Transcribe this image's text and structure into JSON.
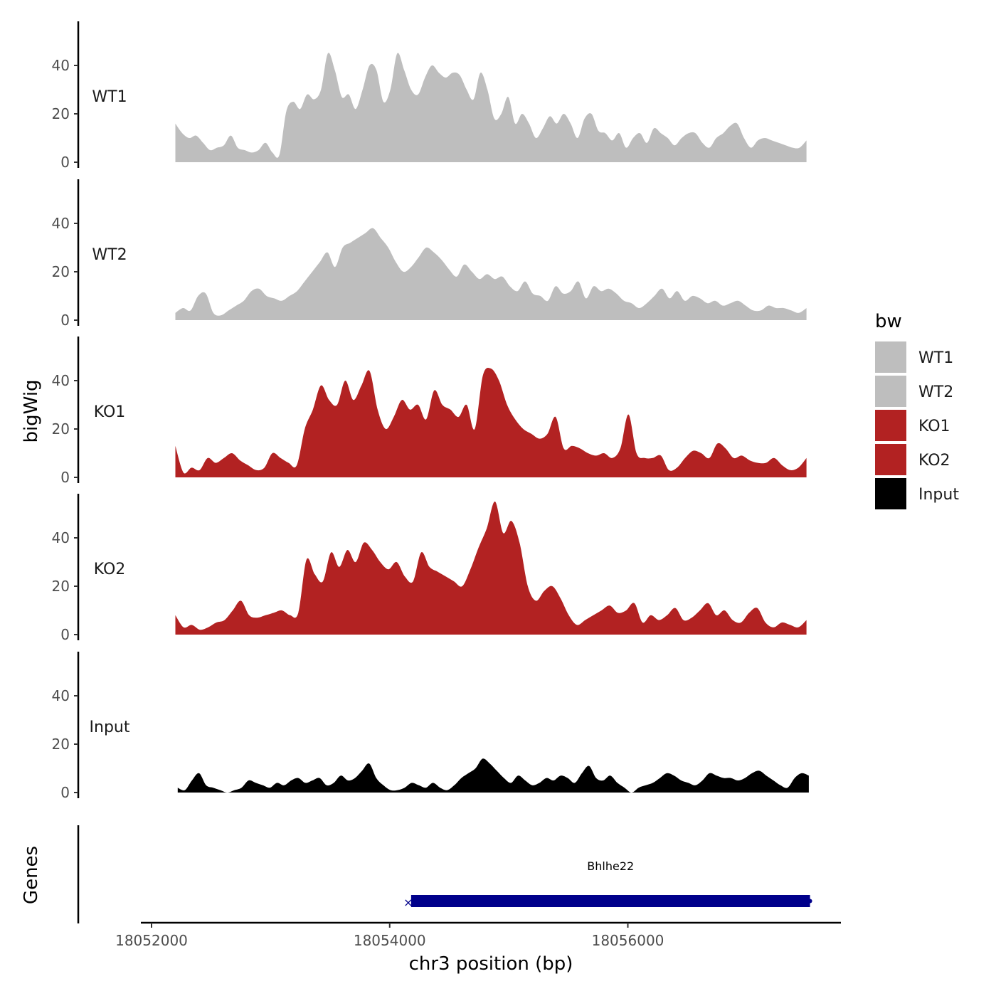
{
  "chart_data": {
    "type": "area",
    "y_title": "bigWig",
    "x_title": "chr3 position (bp)",
    "genes_title": "Genes",
    "chromosome": "chr3",
    "xlim": [
      18051900,
      18057800
    ],
    "ylim": [
      0,
      56
    ],
    "y_ticks": [
      0,
      20,
      40
    ],
    "y_tick_labels": [
      "0",
      "20",
      "40"
    ],
    "x_ticks": [
      18052000,
      18054000,
      18056000
    ],
    "x_tick_labels": [
      "18052000",
      "18054000",
      "18056000"
    ],
    "legend": {
      "title": "bw",
      "position": "right",
      "entries": [
        {
          "label": "WT1",
          "color": "#bebebe"
        },
        {
          "label": "WT2",
          "color": "#bebebe"
        },
        {
          "label": "KO1",
          "color": "#b22222"
        },
        {
          "label": "KO2",
          "color": "#b22222"
        },
        {
          "label": "Input",
          "color": "#000000"
        }
      ]
    },
    "series": [
      {
        "name": "WT1",
        "color": "#bebebe",
        "x_start": 18052200,
        "x_end": 18057500,
        "values": [
          16,
          12,
          10,
          11,
          8,
          5,
          6,
          7,
          11,
          6,
          5,
          4,
          5,
          8,
          4,
          3,
          21,
          25,
          22,
          28,
          26,
          30,
          45,
          38,
          27,
          28,
          22,
          30,
          40,
          38,
          25,
          30,
          45,
          38,
          30,
          28,
          35,
          40,
          37,
          35,
          37,
          36,
          30,
          26,
          37,
          30,
          18,
          20,
          27,
          16,
          20,
          16,
          10,
          14,
          19,
          16,
          20,
          16,
          10,
          18,
          20,
          13,
          12,
          9,
          12,
          6,
          10,
          12,
          8,
          14,
          12,
          10,
          7,
          10,
          12,
          12,
          8,
          6,
          10,
          12,
          15,
          16,
          10,
          6,
          9,
          10,
          9,
          8,
          7,
          6,
          6,
          9
        ]
      },
      {
        "name": "WT2",
        "color": "#bebebe",
        "x_start": 18052200,
        "x_end": 18057500,
        "values": [
          3,
          5,
          4,
          10,
          11,
          3,
          2,
          4,
          6,
          8,
          12,
          13,
          10,
          9,
          8,
          10,
          12,
          16,
          20,
          24,
          28,
          22,
          30,
          32,
          34,
          36,
          38,
          34,
          30,
          24,
          20,
          22,
          26,
          30,
          28,
          25,
          21,
          18,
          23,
          20,
          17,
          19,
          17,
          18,
          14,
          12,
          16,
          11,
          10,
          8,
          14,
          11,
          12,
          16,
          9,
          14,
          12,
          13,
          11,
          8,
          7,
          5,
          7,
          10,
          13,
          9,
          12,
          8,
          10,
          9,
          7,
          8,
          6,
          7,
          8,
          6,
          4,
          4,
          6,
          5,
          5,
          4,
          3,
          5
        ]
      },
      {
        "name": "KO1",
        "color": "#b22222",
        "x_start": 18052200,
        "x_end": 18057500,
        "values": [
          13,
          2,
          4,
          3,
          8,
          6,
          8,
          10,
          7,
          5,
          3,
          4,
          10,
          8,
          6,
          5,
          20,
          28,
          38,
          32,
          30,
          40,
          32,
          38,
          44,
          28,
          20,
          25,
          32,
          28,
          30,
          24,
          36,
          30,
          28,
          25,
          30,
          20,
          42,
          45,
          40,
          30,
          24,
          20,
          18,
          16,
          18,
          25,
          12,
          13,
          12,
          10,
          9,
          10,
          8,
          12,
          26,
          10,
          8,
          8,
          9,
          3,
          4,
          8,
          11,
          10,
          8,
          14,
          12,
          8,
          9,
          7,
          6,
          6,
          8,
          5,
          3,
          4,
          8
        ]
      },
      {
        "name": "KO2",
        "color": "#b22222",
        "x_start": 18052200,
        "x_end": 18057500,
        "values": [
          8,
          3,
          4,
          2,
          3,
          5,
          6,
          10,
          14,
          8,
          7,
          8,
          9,
          10,
          8,
          9,
          31,
          25,
          22,
          34,
          28,
          35,
          30,
          38,
          35,
          30,
          27,
          30,
          24,
          22,
          34,
          28,
          26,
          24,
          22,
          20,
          27,
          36,
          44,
          55,
          42,
          47,
          38,
          20,
          14,
          18,
          20,
          15,
          8,
          4,
          6,
          8,
          10,
          12,
          9,
          10,
          13,
          5,
          8,
          6,
          8,
          11,
          6,
          7,
          10,
          13,
          8,
          10,
          6,
          5,
          9,
          11,
          5,
          3,
          5,
          4,
          3,
          6
        ]
      },
      {
        "name": "Input",
        "color": "#000000",
        "x_start": 18052220,
        "x_end": 18057520,
        "values": [
          2,
          1,
          5,
          8,
          3,
          2,
          1,
          0,
          1,
          2,
          5,
          4,
          3,
          2,
          4,
          3,
          5,
          6,
          4,
          5,
          6,
          3,
          4,
          7,
          5,
          6,
          9,
          12,
          6,
          3,
          1,
          1,
          2,
          4,
          3,
          2,
          4,
          2,
          1,
          3,
          6,
          8,
          10,
          14,
          12,
          9,
          6,
          4,
          7,
          5,
          3,
          4,
          6,
          5,
          7,
          6,
          4,
          8,
          11,
          6,
          5,
          7,
          4,
          2,
          0,
          2,
          3,
          4,
          6,
          8,
          7,
          5,
          4,
          3,
          5,
          8,
          7,
          6,
          6,
          5,
          6,
          8,
          9,
          7,
          5,
          3,
          2,
          6,
          8,
          7
        ]
      }
    ],
    "genes": [
      {
        "name": "Bhlhe22",
        "start": 18054180,
        "end": 18057530,
        "strand": "+",
        "color": "#00008b"
      }
    ]
  }
}
